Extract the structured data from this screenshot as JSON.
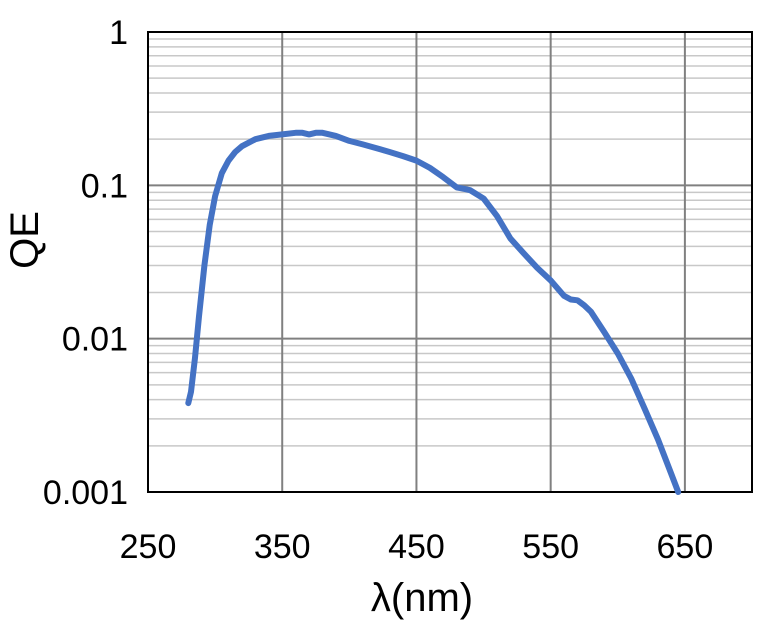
{
  "chart_data": {
    "type": "line",
    "title": "",
    "xlabel": "λ(nm)",
    "ylabel": "QE",
    "xlim": [
      250,
      700
    ],
    "ylim": [
      0.001,
      1
    ],
    "yscale": "log",
    "x_ticks": [
      250,
      350,
      450,
      550,
      650
    ],
    "x_tick_labels": [
      "250",
      "350",
      "450",
      "550",
      "650"
    ],
    "y_ticks": [
      0.001,
      0.01,
      0.1,
      1
    ],
    "y_tick_labels": [
      "0.001",
      "0.01",
      "0.1",
      "1"
    ],
    "x_grid": true,
    "y_grid": true,
    "y_minor_grid": true,
    "legend": "none",
    "colors": {
      "line": "#4472C4",
      "major_grid": "#808080",
      "minor_grid": "#c8c8c8"
    },
    "series": [
      {
        "x": [
          280,
          282,
          285,
          288,
          292,
          296,
          300,
          305,
          310,
          315,
          320,
          330,
          340,
          350,
          360,
          365,
          370,
          375,
          380,
          390,
          400,
          410,
          420,
          430,
          440,
          450,
          460,
          470,
          480,
          485,
          490,
          500,
          510,
          520,
          530,
          540,
          550,
          560,
          565,
          570,
          575,
          580,
          590,
          600,
          610,
          620,
          630,
          640,
          645
        ],
        "y": [
          0.0038,
          0.0045,
          0.0075,
          0.014,
          0.03,
          0.055,
          0.085,
          0.12,
          0.145,
          0.165,
          0.18,
          0.2,
          0.21,
          0.215,
          0.22,
          0.22,
          0.215,
          0.22,
          0.22,
          0.21,
          0.195,
          0.185,
          0.175,
          0.165,
          0.155,
          0.145,
          0.13,
          0.113,
          0.097,
          0.095,
          0.093,
          0.082,
          0.063,
          0.045,
          0.036,
          0.029,
          0.024,
          0.019,
          0.018,
          0.0178,
          0.0165,
          0.015,
          0.011,
          0.008,
          0.0055,
          0.0035,
          0.0022,
          0.0013,
          0.001
        ]
      }
    ]
  }
}
